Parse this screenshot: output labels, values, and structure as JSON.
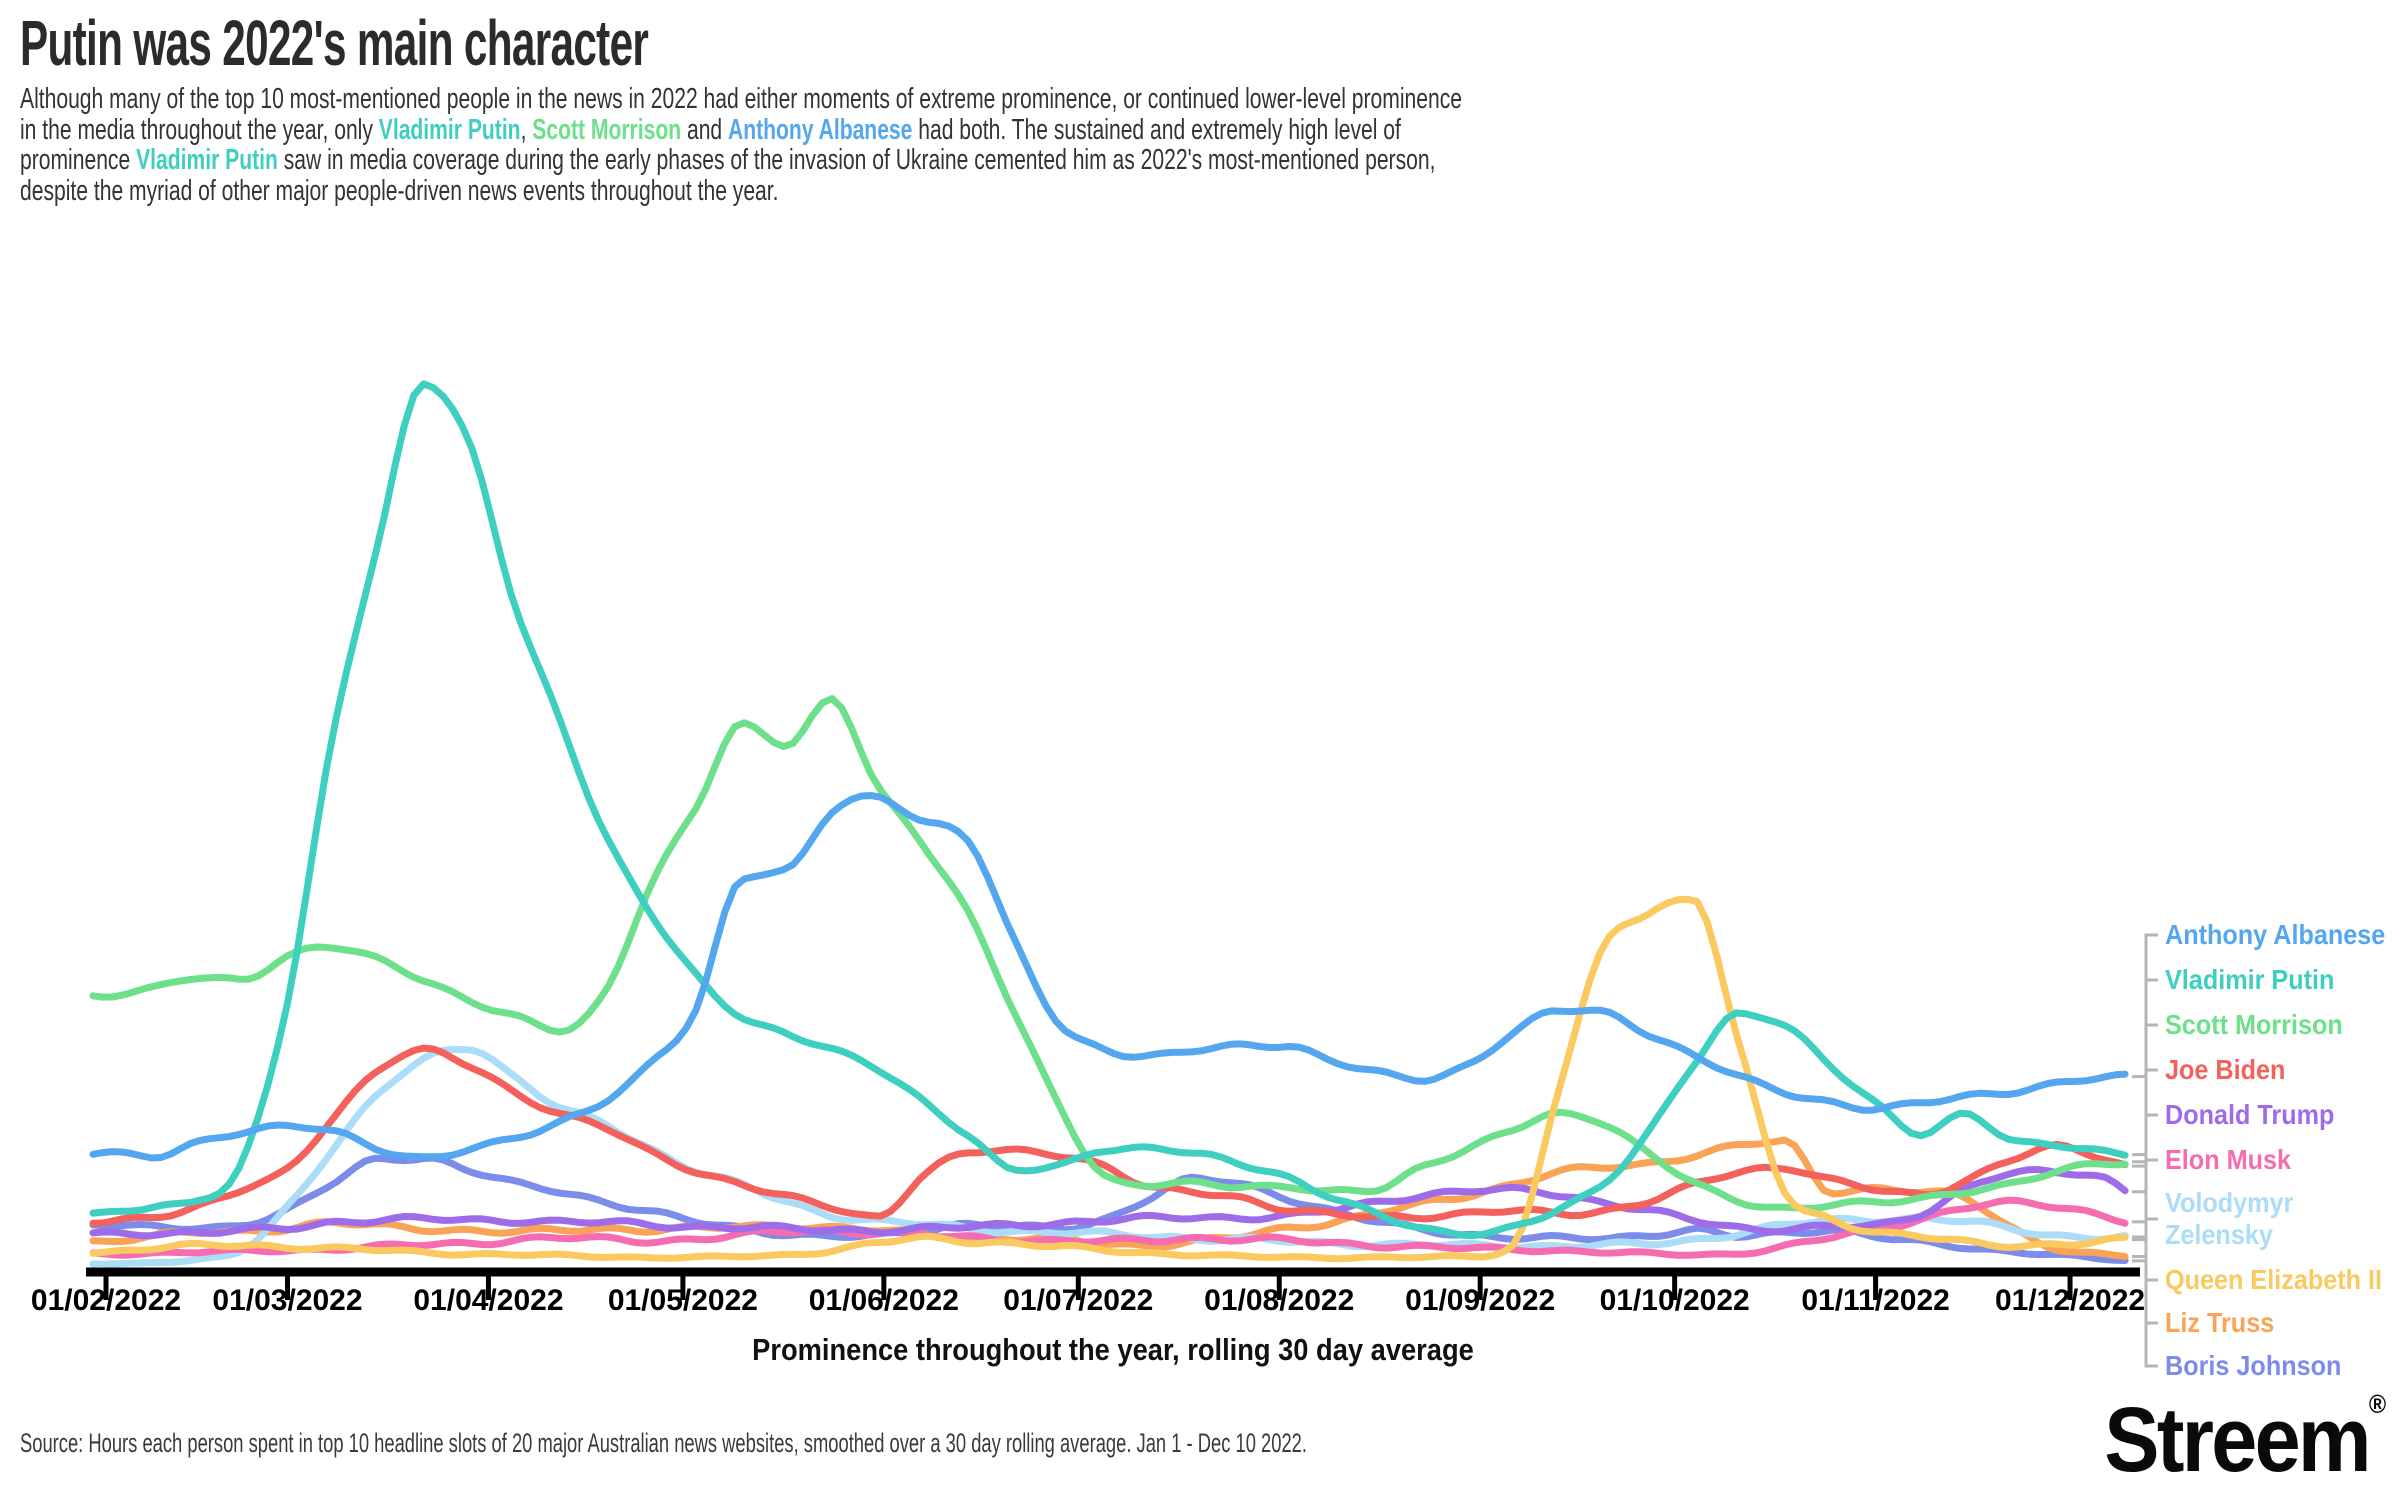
{
  "title": "Putin was 2022's main character",
  "subtitle": {
    "lines": [
      [
        {
          "t": "Although many of the top 10 most-mentioned people in the news in 2022 had either moments of extreme prominence, or continued lower-level prominence"
        }
      ],
      [
        {
          "t": "in the media throughout the year, only "
        },
        {
          "t": "Vladimir Putin",
          "c": "putin"
        },
        {
          "t": ", "
        },
        {
          "t": "Scott Morrison",
          "c": "morrison"
        },
        {
          "t": " and "
        },
        {
          "t": "Anthony Albanese",
          "c": "albanese"
        },
        {
          "t": " had both. The sustained and extremely high level of"
        }
      ],
      [
        {
          "t": "prominence "
        },
        {
          "t": "Vladimir Putin",
          "c": "putin"
        },
        {
          "t": " saw in media coverage during the early phases of the invasion of Ukraine cemented him as 2022's most-mentioned person,"
        }
      ],
      [
        {
          "t": "despite the myriad of other major people-driven news events throughout the year."
        }
      ]
    ]
  },
  "colors": {
    "albanese": "#54a7ee",
    "putin": "#3fcfc1",
    "morrison": "#6ee08c",
    "biden": "#f4615c",
    "trump": "#9e6ce8",
    "musk": "#f56cb1",
    "zelensky": "#abdcf8",
    "queen": "#fac95f",
    "truss": "#f9a357",
    "boris": "#7c8ce9",
    "axis": "#000000",
    "leader": "#b5b5b5"
  },
  "axis": {
    "x_title": "Prominence throughout the year, rolling 30 day average",
    "tick_labels": [
      "01/02/2022",
      "01/03/2022",
      "01/04/2022",
      "01/05/2022",
      "01/06/2022",
      "01/07/2022",
      "01/08/2022",
      "01/09/2022",
      "01/10/2022",
      "01/11/2022",
      "01/12/2022"
    ],
    "tick_days": [
      0,
      28,
      59,
      89,
      120,
      150,
      181,
      212,
      242,
      273,
      303
    ]
  },
  "legend": {
    "entries": [
      {
        "key": "albanese",
        "label": "Anthony Albanese"
      },
      {
        "key": "putin",
        "label": "Vladimir Putin"
      },
      {
        "key": "morrison",
        "label": "Scott Morrison"
      },
      {
        "key": "biden",
        "label": "Joe Biden"
      },
      {
        "key": "trump",
        "label": "Donald Trump"
      },
      {
        "key": "musk",
        "label": "Elon Musk"
      },
      {
        "key": "zelensky",
        "label": "Volodymyr\nZelensky"
      },
      {
        "key": "queen",
        "label": "Queen Elizabeth II"
      },
      {
        "key": "truss",
        "label": "Liz Truss"
      },
      {
        "key": "boris",
        "label": "Boris Johnson"
      }
    ]
  },
  "source": "Source: Hours each person spent in top 10 headline slots of 20 major Australian news websites, smoothed over a 30 day rolling average. Jan 1 - Dec 10 2022.",
  "brand": {
    "name": "Streem",
    "reg": "®"
  },
  "chart_data": {
    "type": "line",
    "x_unit": "days since 2022-02-01 (rolling 30 day average window, data Jan 1 - Dec 10 2022)",
    "value_unit": "relative prominence, normalized so Vladimir Putin's March peak = 100",
    "x_grid": [
      0,
      7,
      14,
      21,
      28,
      35,
      42,
      49,
      56,
      63,
      70,
      77,
      84,
      91,
      98,
      105,
      112,
      119,
      126,
      133,
      140,
      147,
      154,
      161,
      168,
      175,
      182,
      189,
      196,
      203,
      210,
      217,
      224,
      231,
      238,
      245,
      252,
      259,
      266,
      273,
      280,
      287,
      294,
      301,
      308,
      312
    ],
    "grid": false,
    "legend_position": "right, ordered by final value, connected with gray leader lines",
    "series": [
      {
        "name": "Anthony Albanese",
        "key": "albanese",
        "values": [
          13.1,
          12.4,
          14.1,
          15.5,
          16,
          15.3,
          13.5,
          12.5,
          13.4,
          14.5,
          16.5,
          19,
          23,
          29,
          44,
          45,
          51.5,
          53,
          50.5,
          48.5,
          37,
          27.5,
          24.8,
          24,
          24.5,
          25,
          25.2,
          23.5,
          22,
          21.2,
          23,
          26.5,
          29,
          28.8,
          26.5,
          24,
          21.5,
          19.8,
          18.8,
          18,
          18.5,
          19.4,
          20,
          20.8,
          21.4,
          21.6
        ]
      },
      {
        "name": "Vladimir Putin",
        "key": "putin",
        "values": [
          6,
          6.8,
          7.7,
          12,
          30,
          60,
          82,
          100,
          93,
          75,
          62,
          49,
          40,
          33,
          28.5,
          26.5,
          24.5,
          22.5,
          19,
          15,
          11,
          11.5,
          13.5,
          13.5,
          12.8,
          11.8,
          10.4,
          8,
          6,
          4.5,
          4,
          4.5,
          6.5,
          9.5,
          15.5,
          23,
          28.5,
          27.5,
          23,
          18.5,
          15,
          17.5,
          14.5,
          13.8,
          13,
          12.8
        ]
      },
      {
        "name": "Scott Morrison",
        "key": "morrison",
        "values": [
          30.5,
          31.5,
          33,
          32.5,
          35,
          36.3,
          35,
          32.5,
          30,
          28.5,
          27,
          31,
          43,
          52,
          61.5,
          59,
          64,
          54.5,
          48,
          40,
          29,
          18.5,
          10.5,
          9.3,
          9.5,
          9.3,
          9.3,
          8.5,
          8.8,
          11.5,
          13.5,
          15.5,
          17.3,
          16.5,
          13,
          9.5,
          7.5,
          6.8,
          7.2,
          7.3,
          7.8,
          8.8,
          9.5,
          10.8,
          11.8,
          12
        ]
      },
      {
        "name": "Joe Biden",
        "key": "biden",
        "values": [
          5.1,
          5.8,
          7,
          8.8,
          11,
          17,
          22.5,
          24.5,
          22.8,
          19.9,
          17.5,
          15.8,
          13,
          11,
          9.5,
          8,
          6.8,
          5.8,
          10.5,
          12.9,
          13.2,
          12.9,
          11.5,
          9,
          8.6,
          8,
          6.6,
          6,
          5.8,
          5.9,
          6.1,
          6.4,
          6.2,
          6.5,
          7.5,
          9.3,
          10.9,
          11.4,
          9.9,
          8.8,
          8.3,
          10,
          12.2,
          13.6,
          12.5,
          11.5
        ]
      },
      {
        "name": "Donald Trump",
        "key": "trump",
        "values": [
          3.8,
          4,
          4,
          4.2,
          4.5,
          5.2,
          5.4,
          5.5,
          5.4,
          5.4,
          5.2,
          5.1,
          4.9,
          4.7,
          4.6,
          4.4,
          4.3,
          4.3,
          4.4,
          4.6,
          4.9,
          5.1,
          5.3,
          5.6,
          5.8,
          5.7,
          5.8,
          6.5,
          7.5,
          8.2,
          8.6,
          8.8,
          8.4,
          7.4,
          6.4,
          5.4,
          4.6,
          4.4,
          4.6,
          4.8,
          6.2,
          9,
          10.6,
          10.8,
          10.3,
          8.6
        ]
      },
      {
        "name": "Elon Musk",
        "key": "musk",
        "values": [
          1.6,
          1.7,
          1.8,
          1.9,
          2,
          2.2,
          2.4,
          2.6,
          2.8,
          3.2,
          3.4,
          3.2,
          3.1,
          3.3,
          3.7,
          4.1,
          4.2,
          4,
          3.7,
          3.4,
          3.2,
          3.1,
          3,
          3.1,
          3.4,
          3.3,
          3.1,
          2.8,
          2.6,
          2.4,
          2.2,
          2.1,
          2,
          1.8,
          1.6,
          1.5,
          1.7,
          2.4,
          3.4,
          4.4,
          5.6,
          6.8,
          7.3,
          7,
          6,
          5.2
        ]
      },
      {
        "name": "Volodymyr Zelensky",
        "key": "zelensky",
        "values": [
          0.5,
          0.6,
          0.9,
          2,
          7,
          13.5,
          19.5,
          23.5,
          25,
          21.5,
          18,
          16.3,
          13.5,
          11,
          9.3,
          7.5,
          6,
          5.3,
          4.9,
          4.5,
          4.2,
          4,
          3.8,
          3.6,
          3.4,
          3.2,
          3,
          2.8,
          2.7,
          2.6,
          2.5,
          2.5,
          2.5,
          2.6,
          2.7,
          3.2,
          4,
          4.8,
          5.3,
          5.5,
          5.6,
          5.2,
          4.4,
          3.7,
          3.5,
          3.5
        ]
      },
      {
        "name": "Queen Elizabeth II",
        "key": "queen",
        "values": [
          1.8,
          2.2,
          2.5,
          2.6,
          2.4,
          2.2,
          2,
          1.8,
          1.6,
          1.5,
          1.4,
          1.3,
          1.2,
          1.2,
          1.3,
          1.5,
          2,
          2.8,
          3.3,
          3.1,
          2.8,
          2.4,
          2,
          1.7,
          1.5,
          1.3,
          1.2,
          1.2,
          1.2,
          1.2,
          1.3,
          2.5,
          20,
          36,
          40,
          41.8,
          25,
          8.5,
          5.5,
          4.2,
          3.6,
          2.8,
          2.5,
          2.8,
          3,
          3.2
        ]
      },
      {
        "name": "Liz Truss",
        "key": "truss",
        "values": [
          3,
          3.5,
          4,
          4.2,
          4.5,
          5,
          4.8,
          4.5,
          4.2,
          4,
          4.3,
          4.5,
          4.3,
          4.4,
          4.7,
          4.8,
          4.5,
          4.2,
          3.8,
          3.5,
          3.3,
          3.2,
          2.8,
          2.6,
          3,
          3.5,
          4.5,
          5.2,
          6.2,
          7.2,
          8.2,
          9.5,
          10.8,
          11.3,
          11.8,
          12.8,
          13.8,
          14.2,
          8.7,
          9,
          8.5,
          7.8,
          4.6,
          2.2,
          1.5,
          1.3
        ]
      },
      {
        "name": "Boris Johnson",
        "key": "boris",
        "values": [
          5,
          4.5,
          4.5,
          5,
          6.5,
          9.5,
          12.3,
          12.5,
          11,
          9.5,
          8.7,
          7.5,
          6.3,
          5.2,
          4.5,
          3.9,
          3.5,
          3.6,
          4.3,
          5,
          4.6,
          4.4,
          5.5,
          8,
          10,
          9.4,
          8,
          6.5,
          5.2,
          4.3,
          3.8,
          3.5,
          3.3,
          3.3,
          3.8,
          4.3,
          3.5,
          3.9,
          4.4,
          3.6,
          2.8,
          2.3,
          1.9,
          1.5,
          1,
          0.8
        ]
      }
    ]
  }
}
